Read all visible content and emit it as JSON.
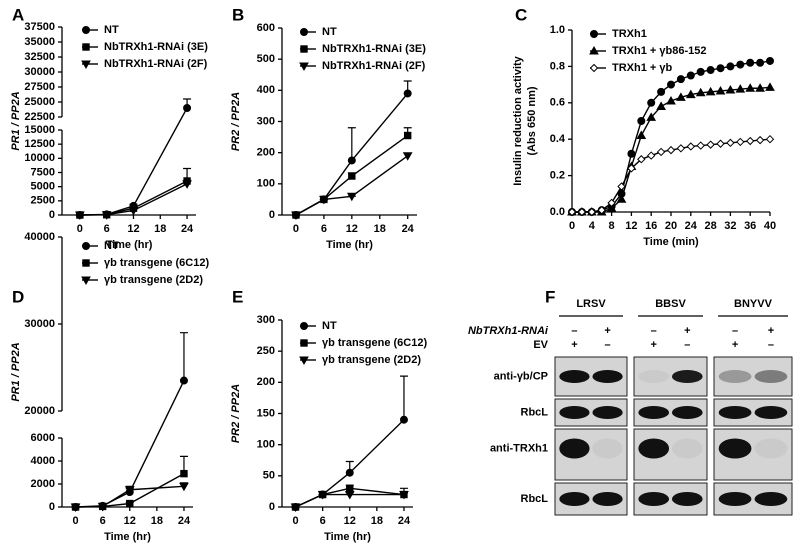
{
  "chart_data": [
    {
      "type": "line",
      "panel": "A",
      "xlabel": "Time (hr)",
      "ylabel": "PR1 / PP2A",
      "x": [
        0,
        6,
        12,
        24
      ],
      "xlim": [
        -4,
        26
      ],
      "xticks": [
        0,
        6,
        12,
        18,
        24
      ],
      "ylim": [
        0,
        37500
      ],
      "ybreak": [
        15000,
        22500
      ],
      "yticks": [
        0,
        2500,
        5000,
        7500,
        10000,
        12500,
        15000,
        22500,
        25000,
        27500,
        30000,
        32500,
        35000,
        37500
      ],
      "series": [
        {
          "name": "NT",
          "color": "#000000",
          "marker": "circle",
          "values": [
            0,
            100,
            1600,
            24000
          ],
          "errors": [
            0,
            0,
            300,
            1500
          ]
        },
        {
          "name": "NbTRXh1-RNAi (3E)",
          "color": "#000000",
          "marker": "square",
          "values": [
            0,
            50,
            1200,
            6000
          ],
          "errors": [
            0,
            0,
            200,
            2200
          ]
        },
        {
          "name": "NbTRXh1-RNAi (2F)",
          "color": "#000000",
          "marker": "triangle-down",
          "values": [
            0,
            50,
            800,
            5500
          ],
          "errors": [
            0,
            0,
            200,
            500
          ]
        }
      ]
    },
    {
      "type": "line",
      "panel": "B",
      "xlabel": "Time (hr)",
      "ylabel": "PR2 / PP2A",
      "x": [
        0,
        6,
        12,
        24
      ],
      "xlim": [
        -3,
        26
      ],
      "xticks": [
        0,
        6,
        12,
        18,
        24
      ],
      "ylim": [
        0,
        600
      ],
      "yticks": [
        0,
        100,
        200,
        300,
        400,
        500,
        600
      ],
      "series": [
        {
          "name": "NT",
          "color": "#000000",
          "marker": "circle",
          "values": [
            0,
            50,
            175,
            390
          ],
          "errors": [
            0,
            0,
            105,
            40
          ]
        },
        {
          "name": "NbTRXh1-RNAi (3E)",
          "color": "#000000",
          "marker": "square",
          "values": [
            0,
            50,
            125,
            255
          ],
          "errors": [
            0,
            0,
            10,
            25
          ]
        },
        {
          "name": "NbTRXh1-RNAi (2F)",
          "color": "#000000",
          "marker": "triangle-down",
          "values": [
            0,
            50,
            60,
            190
          ],
          "errors": [
            0,
            0,
            0,
            8
          ]
        }
      ]
    },
    {
      "type": "line",
      "panel": "C",
      "xlabel": "Time (min)",
      "ylabel": [
        "Insulin reduction activity",
        "(Abs 650 nm)"
      ],
      "x": [
        0,
        2,
        4,
        6,
        8,
        10,
        12,
        14,
        16,
        18,
        20,
        22,
        24,
        26,
        28,
        30,
        32,
        34,
        36,
        38,
        40
      ],
      "xlim": [
        0,
        40
      ],
      "xticks": [
        0,
        4,
        8,
        12,
        16,
        20,
        24,
        28,
        32,
        36,
        40
      ],
      "ylim": [
        0,
        1
      ],
      "yticks": [
        {
          "value": 0,
          "label": "0.0"
        },
        0.2,
        0.4,
        0.6,
        0.8,
        {
          "value": 1,
          "label": "1.0"
        }
      ],
      "series": [
        {
          "name": "TRXh1",
          "color": "#000000",
          "marker": "circle",
          "values": [
            0,
            0,
            0,
            0.01,
            0.03,
            0.1,
            0.32,
            0.5,
            0.6,
            0.66,
            0.7,
            0.73,
            0.75,
            0.77,
            0.78,
            0.79,
            0.8,
            0.81,
            0.82,
            0.82,
            0.83
          ]
        },
        {
          "name": "TRXh1 + γb86-152",
          "color": "#000000",
          "marker": "triangle-up",
          "values": [
            0,
            0,
            0,
            0,
            0.02,
            0.07,
            0.25,
            0.42,
            0.52,
            0.58,
            0.61,
            0.63,
            0.645,
            0.655,
            0.66,
            0.665,
            0.67,
            0.675,
            0.68,
            0.68,
            0.685
          ]
        },
        {
          "name": "TRXh1 + γb",
          "color": "#000000",
          "marker": "diamond-open",
          "values": [
            0,
            0,
            0,
            0.01,
            0.05,
            0.14,
            0.24,
            0.29,
            0.31,
            0.33,
            0.34,
            0.35,
            0.36,
            0.365,
            0.37,
            0.375,
            0.38,
            0.385,
            0.39,
            0.395,
            0.4
          ]
        }
      ]
    },
    {
      "type": "line",
      "panel": "D",
      "xlabel": "Time (hr)",
      "ylabel": "PR1 / PP2A",
      "x": [
        0,
        6,
        12,
        24
      ],
      "xlim": [
        -3,
        26
      ],
      "xticks": [
        0,
        6,
        12,
        18,
        24
      ],
      "ylim": [
        0,
        40000
      ],
      "ybreak": [
        6000,
        20000
      ],
      "yticks": [
        0,
        2000,
        4000,
        6000,
        20000,
        30000,
        40000
      ],
      "series": [
        {
          "name": "NT",
          "color": "#000000",
          "marker": "circle",
          "values": [
            0,
            100,
            1300,
            23500
          ],
          "errors": [
            0,
            0,
            300,
            5500
          ]
        },
        {
          "name": "γb transgene (6C12)",
          "color": "#000000",
          "marker": "square",
          "values": [
            0,
            50,
            300,
            2900
          ],
          "errors": [
            0,
            0,
            100,
            1500
          ]
        },
        {
          "name": "γb transgene (2D2)",
          "color": "#000000",
          "marker": "triangle-down",
          "values": [
            0,
            50,
            1500,
            1800
          ],
          "errors": [
            0,
            0,
            300,
            300
          ]
        }
      ]
    },
    {
      "type": "line",
      "panel": "E",
      "xlabel": "Time (hr)",
      "ylabel": "PR2 / PP2A",
      "x": [
        0,
        6,
        12,
        24
      ],
      "xlim": [
        -3,
        26
      ],
      "xticks": [
        0,
        6,
        12,
        18,
        24
      ],
      "ylim": [
        0,
        300
      ],
      "yticks": [
        0,
        50,
        100,
        150,
        200,
        250,
        300
      ],
      "series": [
        {
          "name": "NT",
          "color": "#000000",
          "marker": "circle",
          "values": [
            0,
            20,
            55,
            140
          ],
          "errors": [
            0,
            0,
            18,
            70
          ]
        },
        {
          "name": "γb transgene (6C12)",
          "color": "#000000",
          "marker": "square",
          "values": [
            0,
            20,
            30,
            20
          ],
          "errors": [
            0,
            0,
            5,
            10
          ]
        },
        {
          "name": "γb transgene (2D2)",
          "color": "#000000",
          "marker": "triangle-down",
          "values": [
            0,
            20,
            20,
            20
          ],
          "errors": [
            0,
            0,
            3,
            3
          ]
        }
      ]
    }
  ],
  "blot": {
    "panel": "F",
    "rnai_label": "NbTRXh1-RNAi",
    "ev_label": "EV",
    "groups": [
      {
        "name": "LRSV",
        "rnai": [
          "–",
          "+"
        ],
        "ev": [
          "+",
          "–"
        ]
      },
      {
        "name": "BBSV",
        "rnai": [
          "–",
          "+"
        ],
        "ev": [
          "+",
          "–"
        ]
      },
      {
        "name": "BNYVV",
        "rnai": [
          "–",
          "+"
        ],
        "ev": [
          "+",
          "–"
        ]
      }
    ],
    "rows": [
      "anti-γb/CP",
      "RbcL",
      "anti-TRXh1",
      "RbcL"
    ]
  }
}
